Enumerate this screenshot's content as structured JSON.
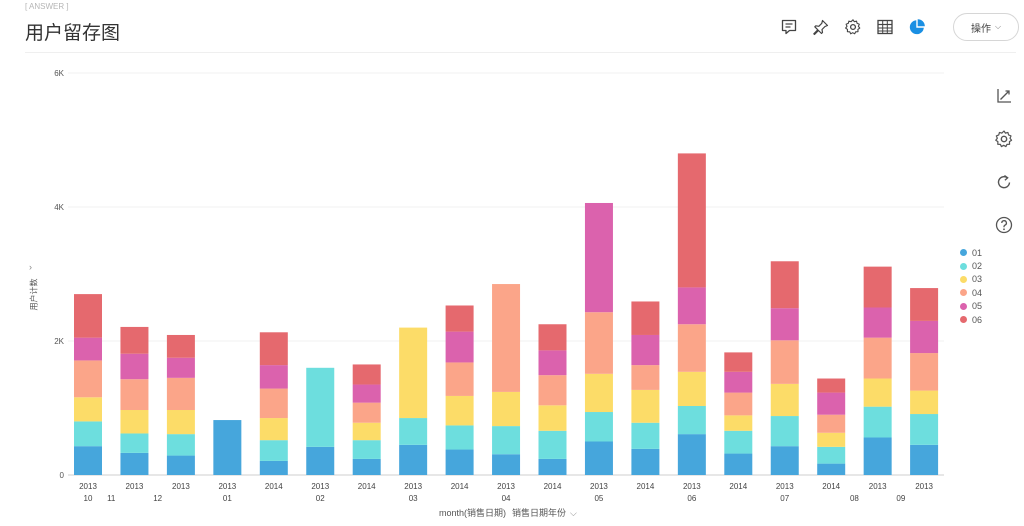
{
  "header": {
    "answer_tag": "[ ANSWER ]",
    "title": "用户留存图",
    "operate_label": "操作"
  },
  "toolbar_icons": [
    "comment-icon",
    "pin-icon",
    "settings-icon",
    "table-view-icon",
    "pie-chart-icon"
  ],
  "side_icons": [
    "axis-icon",
    "gear-icon",
    "refresh-icon",
    "help-icon"
  ],
  "colors": {
    "accent": "#1a8fe3",
    "series": [
      "#46a6dc",
      "#6ddede",
      "#fcdc68",
      "#fba589",
      "#db62ad",
      "#e5696e"
    ]
  },
  "chart_data": {
    "type": "bar",
    "stacked": true,
    "title": "用户留存图",
    "ylabel": "用户计数",
    "xlabel": "month(销售日期)",
    "xlabel_secondary": "销售日期年份",
    "ylim": [
      0,
      6000
    ],
    "yticks": [
      {
        "value": 0,
        "label": "0"
      },
      {
        "value": 2000,
        "label": "2K"
      },
      {
        "value": 4000,
        "label": "4K"
      },
      {
        "value": 6000,
        "label": "6K"
      }
    ],
    "year_labels": [
      "2013",
      "2013",
      "2013",
      "2013",
      "2014",
      "2013",
      "2014",
      "2013",
      "2014",
      "2013",
      "2014",
      "2013",
      "2014",
      "2013",
      "2014",
      "2013",
      "2014",
      "2013",
      "2013"
    ],
    "month_labels": [
      {
        "label": "10",
        "pos": 0
      },
      {
        "label": "11",
        "pos": 0.5
      },
      {
        "label": "12",
        "pos": 1.5
      },
      {
        "label": "01",
        "pos": 3
      },
      {
        "label": "02",
        "pos": 5
      },
      {
        "label": "03",
        "pos": 7
      },
      {
        "label": "04",
        "pos": 9
      },
      {
        "label": "05",
        "pos": 11
      },
      {
        "label": "06",
        "pos": 13
      },
      {
        "label": "07",
        "pos": 15
      },
      {
        "label": "08",
        "pos": 16.5
      },
      {
        "label": "09",
        "pos": 17.5
      }
    ],
    "series": [
      {
        "name": "01",
        "values": [
          430,
          330,
          290,
          820,
          210,
          420,
          240,
          450,
          380,
          310,
          240,
          500,
          390,
          610,
          320,
          430,
          170,
          560,
          450
        ]
      },
      {
        "name": "02",
        "values": [
          370,
          290,
          320,
          0,
          310,
          1180,
          280,
          400,
          360,
          420,
          420,
          440,
          390,
          420,
          340,
          450,
          250,
          460,
          460
        ]
      },
      {
        "name": "03",
        "values": [
          360,
          350,
          360,
          0,
          330,
          0,
          260,
          1350,
          440,
          510,
          380,
          570,
          490,
          510,
          230,
          480,
          210,
          420,
          350
        ]
      },
      {
        "name": "04",
        "values": [
          550,
          460,
          480,
          0,
          440,
          0,
          300,
          0,
          500,
          1610,
          450,
          920,
          370,
          710,
          340,
          650,
          270,
          610,
          560
        ]
      },
      {
        "name": "05",
        "values": [
          340,
          380,
          300,
          0,
          350,
          0,
          270,
          0,
          460,
          0,
          370,
          1630,
          450,
          550,
          310,
          480,
          330,
          450,
          480
        ]
      },
      {
        "name": "06",
        "values": [
          650,
          400,
          340,
          0,
          490,
          0,
          300,
          0,
          390,
          0,
          390,
          0,
          500,
          2000,
          290,
          700,
          210,
          610,
          490
        ]
      }
    ],
    "legend": [
      "01",
      "02",
      "03",
      "04",
      "05",
      "06"
    ],
    "legend_position": "right"
  }
}
